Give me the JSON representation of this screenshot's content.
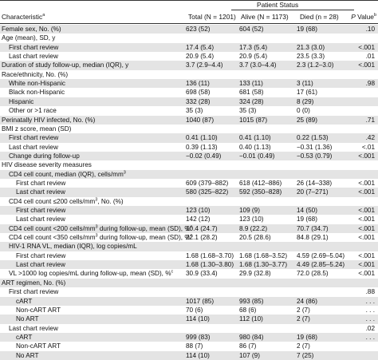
{
  "table": {
    "header": {
      "characteristic": [
        "Characteristic",
        {
          "sup": "a"
        }
      ],
      "total": "Total (N = 1201)",
      "group": "Patient Status",
      "alive": "Alive (N = 1173)",
      "died": "Died (n = 28)",
      "p": [
        "P",
        {
          "text": " Value"
        },
        {
          "sup": "b"
        }
      ]
    },
    "rows": [
      {
        "label": "Female sex, No. (%)",
        "total": "623 (52)",
        "alive": "604 (52)",
        "died": "19 (68)",
        "p": ".10"
      },
      {
        "label": "Age (mean), SD, y",
        "rows": [
          {
            "label": "First chart review",
            "total": "17.4 (5.4)",
            "alive": "17.3 (5.4)",
            "died": "21.3 (3.0)",
            "p": "<.001"
          },
          {
            "label": "Last chart review",
            "total": "20.9 (5.4)",
            "alive": "20.9 (5.4)",
            "died": "23.5 (3.3)",
            "p": ".01"
          }
        ]
      },
      {
        "label": "Duration of study follow-up, median (IQR), y",
        "total": "3.7 (2.9–4.4)",
        "alive": "3.7 (3.0–4.4)",
        "died": "2.3 (1.2–3.0)",
        "p": "<.001"
      },
      {
        "label": "Race/ethnicity, No. (%)",
        "rows": [
          {
            "label": "White non-Hispanic",
            "total": "136 (11)",
            "alive": "133 (11)",
            "died": "3 (11)",
            "p": ".98"
          },
          {
            "label": "Black non-Hispanic",
            "total": "698 (58)",
            "alive": "681 (58)",
            "died": "17 (61)"
          },
          {
            "label": "Hispanic",
            "total": "332 (28)",
            "alive": "324 (28)",
            "died": "8 (29)"
          },
          {
            "label": "Other or >1 race",
            "total": "35 (3)",
            "alive": "35 (3)",
            "died": "0 (0)"
          }
        ]
      },
      {
        "label": "Perinatally HIV infected, No. (%)",
        "total": "1040 (87)",
        "alive": "1015 (87)",
        "died": "25 (89)",
        "p": ".71"
      },
      {
        "label": "BMI z score, mean (SD)",
        "rows": [
          {
            "label": "First chart review",
            "total": "0.41 (1.10)",
            "alive": "0.41 (1.10)",
            "died": "0.22 (1.53)",
            "p": ".42"
          },
          {
            "label": "Last chart review",
            "total": "0.39 (1.13)",
            "alive": "0.40 (1.13)",
            "died": "−0.31 (1.36)",
            "p": "<.01"
          },
          {
            "label": "Change during follow-up",
            "total": "−0.02 (0.49)",
            "alive": "−0.01 (0.49)",
            "died": "−0.53 (0.79)",
            "p": "<.001"
          }
        ]
      },
      {
        "label": "HIV disease severity measures",
        "rows": [
          {
            "label": [
              "CD4 cell count, median (IQR), cells/mm",
              {
                "sup": "3"
              }
            ],
            "rows": [
              {
                "label": "First chart review",
                "total": "609 (379–882)",
                "alive": "618 (412–886)",
                "died": "26 (14–338)",
                "p": "<.001"
              },
              {
                "label": "Last chart review",
                "total": "580 (325–822)",
                "alive": "592 (350–828)",
                "died": "20 (7–271)",
                "p": "<.001"
              }
            ]
          },
          {
            "label": [
              "CD4 cell count ≤200 cells/mm",
              {
                "sup": "3"
              },
              {
                "text": ", No. (%)"
              }
            ],
            "rows": [
              {
                "label": "First chart review",
                "total": "123 (10)",
                "alive": "109 (9)",
                "died": "14 (50)",
                "p": "<.001"
              },
              {
                "label": "Last chart review",
                "total": "142 (12)",
                "alive": "123 (10)",
                "died": "19 (68)",
                "p": "<.001"
              }
            ]
          },
          {
            "label": [
              "CD4 cell count <200 cells/mm",
              {
                "sup": "3"
              },
              {
                "text": " during follow-up, mean (SD), %"
              },
              {
                "sup": "c"
              }
            ],
            "total": "10.4 (24.7)",
            "alive": "8.9 (22.2)",
            "died": "70.7 (34.7)",
            "p": "<.001"
          },
          {
            "label": [
              "CD4 cell count <350 cells/mm",
              {
                "sup": "3"
              },
              {
                "text": " during follow-up, mean (SD), %"
              },
              {
                "sup": "c"
              }
            ],
            "total": "22.1 (28.2)",
            "alive": "20.5 (28.6)",
            "died": "84.8 (29.1)",
            "p": "<.001"
          },
          {
            "label": "HIV-1 RNA VL, median (IQR), log copies/mL",
            "rows": [
              {
                "label": "First chart review",
                "total": "1.68 (1.68–3.70)",
                "alive": "1.68 (1.68–3.52)",
                "died": "4.59 (2.69–5.04)",
                "p": "<.001"
              },
              {
                "label": "Last chart review",
                "total": "1.68 (1.30–3.80)",
                "alive": "1.68 (1.30–3.77)",
                "died": "4.49 (2.85–5.24)",
                "p": "<.001"
              }
            ]
          },
          {
            "label": [
              "VL >1000 log copies/mL during follow-up, mean (SD), %",
              {
                "sup": "c"
              }
            ],
            "total": "30.9 (33.4)",
            "alive": "29.9 (32.8)",
            "died": "72.0 (28.5)",
            "p": "<.001"
          }
        ]
      },
      {
        "label": "ART regimen, No. (%)",
        "rows": [
          {
            "label": "First chart review",
            "p": ".88",
            "rows": [
              {
                "label": "cART",
                "total": "1017 (85)",
                "alive": "993 (85)",
                "died": "24 (86)",
                "p": ". . ."
              },
              {
                "label": "Non-cART ART",
                "total": "70 (6)",
                "alive": "68 (6)",
                "died": "2 (7)",
                "p": ". . ."
              },
              {
                "label": "No ART",
                "total": "114 (10)",
                "alive": "112 (10)",
                "died": "2 (7)",
                "p": ". . ."
              }
            ]
          },
          {
            "label": "Last chart review",
            "p": ".02",
            "rows": [
              {
                "label": "cART",
                "total": "999 (83)",
                "alive": "980 (84)",
                "died": "19 (68)",
                "p": ". . ."
              },
              {
                "label": "Non-cART ART",
                "total": "88 (7)",
                "alive": "86 (7)",
                "died": "2 (7)"
              },
              {
                "label": "No ART",
                "total": "114 (10)",
                "alive": "107 (9)",
                "died": "7 (25)"
              }
            ]
          }
        ]
      }
    ]
  }
}
